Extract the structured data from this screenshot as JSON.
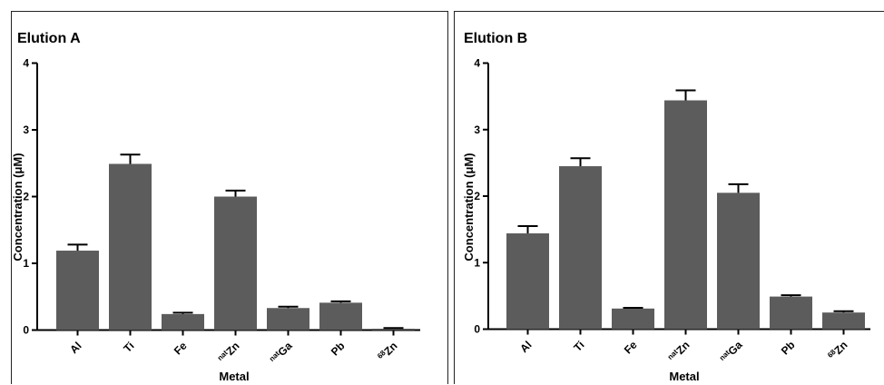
{
  "chart_data": [
    {
      "type": "bar",
      "title": "Elution A",
      "xlabel": "Metal",
      "ylabel": "Concentration (μM)",
      "ylim": [
        0,
        4
      ],
      "yticks": [
        "0",
        "1",
        "2",
        "3",
        "4"
      ],
      "categories": [
        {
          "pre": "",
          "main": "Al"
        },
        {
          "pre": "",
          "main": "Ti"
        },
        {
          "pre": "",
          "main": "Fe"
        },
        {
          "pre": "nat",
          "main": "Zn"
        },
        {
          "pre": "nat",
          "main": "Ga"
        },
        {
          "pre": "",
          "main": "Pb"
        },
        {
          "pre": "68",
          "main": "Zn"
        }
      ],
      "values": [
        1.19,
        2.49,
        0.24,
        2.0,
        0.33,
        0.41,
        0.02
      ],
      "errors": [
        0.09,
        0.14,
        0.02,
        0.09,
        0.02,
        0.02,
        0.01
      ],
      "colors": {
        "bar": "#5c5c5c"
      }
    },
    {
      "type": "bar",
      "title": "Elution B",
      "xlabel": "Metal",
      "ylabel": "Concentration (μM)",
      "ylim": [
        0,
        4
      ],
      "yticks": [
        "0",
        "1",
        "2",
        "3",
        "4"
      ],
      "categories": [
        {
          "pre": "",
          "main": "Al"
        },
        {
          "pre": "",
          "main": "Ti"
        },
        {
          "pre": "",
          "main": "Fe"
        },
        {
          "pre": "nat",
          "main": "Zn"
        },
        {
          "pre": "nat",
          "main": "Ga"
        },
        {
          "pre": "",
          "main": "Pb"
        },
        {
          "pre": "68",
          "main": "Zn"
        }
      ],
      "values": [
        1.44,
        2.45,
        0.31,
        3.44,
        2.05,
        0.49,
        0.25
      ],
      "errors": [
        0.11,
        0.12,
        0.01,
        0.15,
        0.13,
        0.02,
        0.02
      ],
      "colors": {
        "bar": "#5c5c5c"
      }
    }
  ]
}
